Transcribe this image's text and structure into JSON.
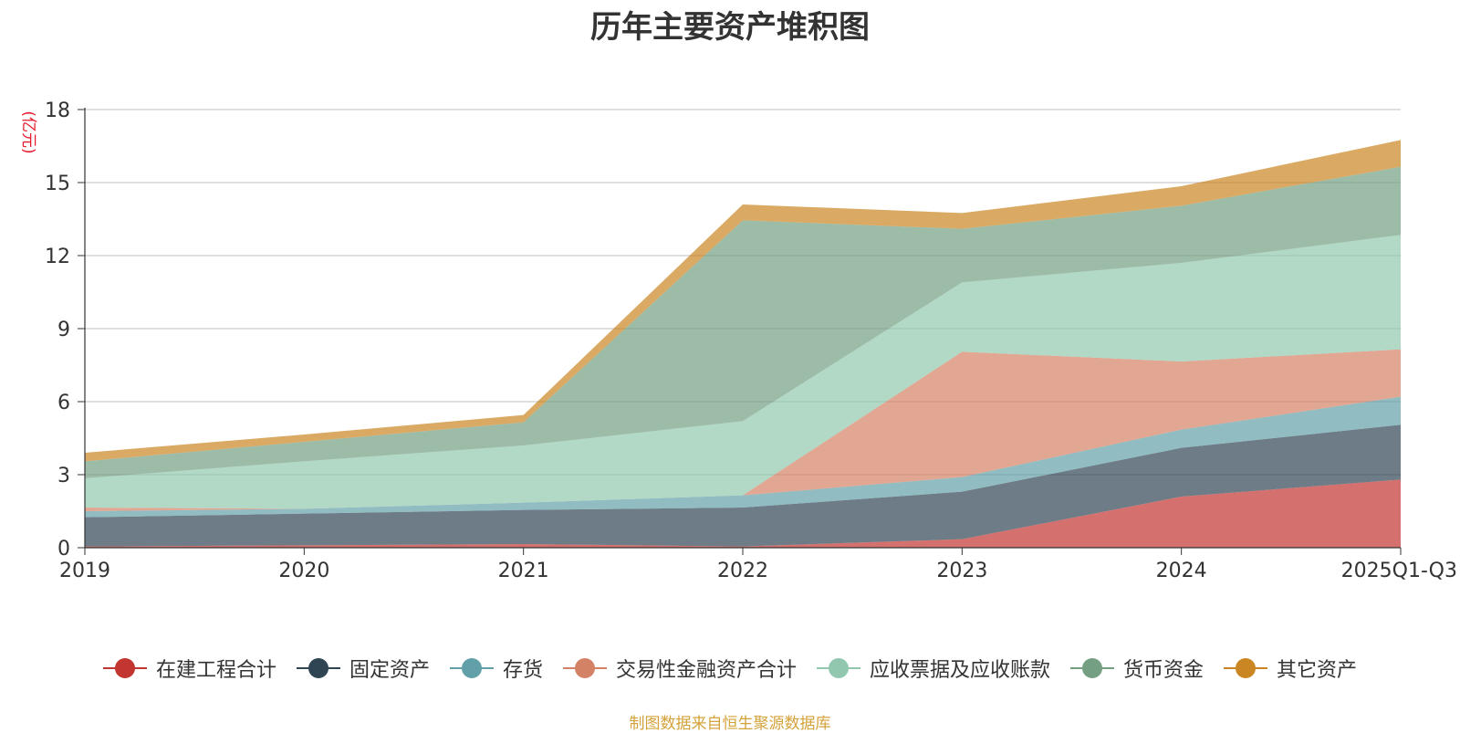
{
  "chart_data": {
    "type": "area",
    "stacked": true,
    "title": "历年主要资产堆积图",
    "ylabel": "(亿元)",
    "xlabel": "",
    "categories": [
      "2019",
      "2020",
      "2021",
      "2022",
      "2023",
      "2024",
      "2025Q1-Q3"
    ],
    "yticks": [
      "0",
      "3",
      "6",
      "9",
      "12",
      "15",
      "18"
    ],
    "ylim": [
      0,
      18
    ],
    "grid": true,
    "legend_position": "bottom",
    "series": [
      {
        "name": "在建工程合计",
        "color": "#c23531",
        "values": [
          0.05,
          0.1,
          0.15,
          0.05,
          0.35,
          2.1,
          2.8
        ]
      },
      {
        "name": "固定资产",
        "color": "#2f4554",
        "values": [
          1.2,
          1.3,
          1.4,
          1.6,
          1.95,
          2.0,
          2.25
        ]
      },
      {
        "name": "存货",
        "color": "#61a0a8",
        "values": [
          0.25,
          0.2,
          0.3,
          0.5,
          0.6,
          0.75,
          1.15
        ]
      },
      {
        "name": "交易性金融资产合计",
        "color": "#d48265",
        "values": [
          0.15,
          0.0,
          0.0,
          0.0,
          5.15,
          2.8,
          1.95
        ]
      },
      {
        "name": "应收票据及应收账款",
        "color": "#91c7ae",
        "values": [
          1.2,
          1.95,
          2.35,
          3.05,
          2.85,
          4.05,
          4.7
        ]
      },
      {
        "name": "货币资金",
        "color": "#749f83",
        "values": [
          0.7,
          0.8,
          0.95,
          8.25,
          2.2,
          2.35,
          2.8
        ]
      },
      {
        "name": "其它资产",
        "color": "#ca8622",
        "values": [
          0.35,
          0.3,
          0.3,
          0.65,
          0.65,
          0.8,
          1.1
        ]
      }
    ],
    "source_note": "制图数据来自恒生聚源数据库"
  }
}
